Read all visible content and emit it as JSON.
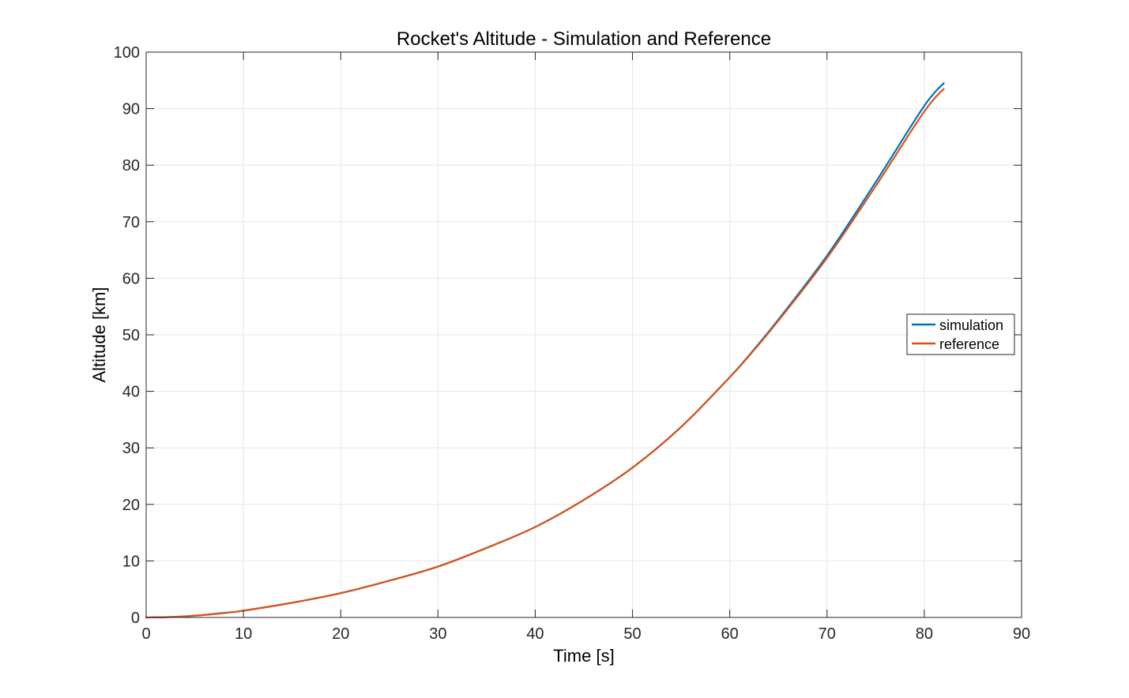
{
  "chart_data": {
    "type": "line",
    "title": "Rocket's Altitude - Simulation and Reference",
    "xlabel": "Time [s]",
    "ylabel": "Altitude [km]",
    "xlim": [
      0,
      90
    ],
    "ylim": [
      0,
      100
    ],
    "xticks": [
      "0",
      "10",
      "20",
      "30",
      "40",
      "50",
      "60",
      "70",
      "80",
      "90"
    ],
    "yticks": [
      "0",
      "10",
      "20",
      "30",
      "40",
      "50",
      "60",
      "70",
      "80",
      "90",
      "100"
    ],
    "grid": true,
    "legend_position": "right",
    "x": [
      0,
      2,
      4,
      6,
      8,
      10,
      15,
      20,
      25,
      30,
      35,
      40,
      45,
      50,
      55,
      60,
      62,
      65,
      70,
      75,
      80,
      82
    ],
    "series": [
      {
        "name": "simulation",
        "color": "#0072BD",
        "values": [
          0,
          0.05,
          0.2,
          0.45,
          0.8,
          1.2,
          2.6,
          4.3,
          6.5,
          9.0,
          12.3,
          16.0,
          20.8,
          26.5,
          33.7,
          42.5,
          46.4,
          52.7,
          64.0,
          77.0,
          90.5,
          94.5
        ]
      },
      {
        "name": "reference",
        "color": "#D95319",
        "values": [
          0,
          0.05,
          0.2,
          0.45,
          0.8,
          1.2,
          2.6,
          4.3,
          6.5,
          9.0,
          12.3,
          16.0,
          20.8,
          26.5,
          33.7,
          42.5,
          46.3,
          52.5,
          63.6,
          76.3,
          89.5,
          93.5
        ]
      }
    ]
  }
}
